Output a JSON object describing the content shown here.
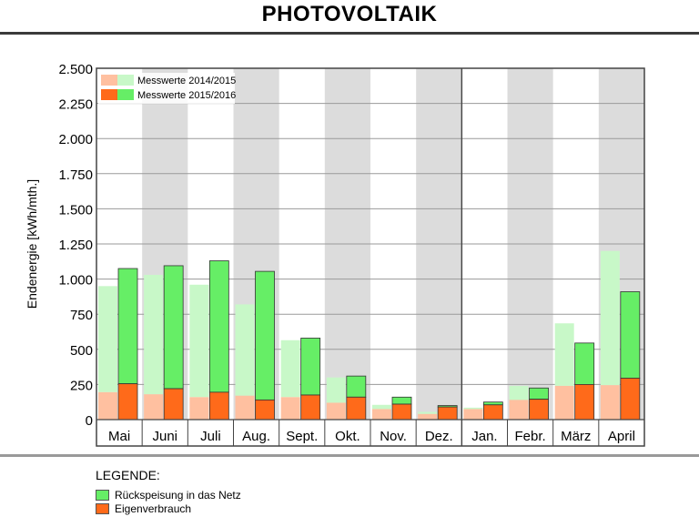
{
  "page": {
    "title": "PHOTOVOLTAIK"
  },
  "legend": {
    "title": "LEGENDE:",
    "items": [
      {
        "label": "Rückspeisung in das Netz",
        "color": "#66ee66"
      },
      {
        "label": "Eigenverbrauch",
        "color": "#ff6a1a"
      }
    ]
  },
  "chart_data": {
    "type": "bar",
    "subtype": "stacked-grouped",
    "ylabel": "Endenergie [kWh/mth.]",
    "xlabel": "",
    "ylim": [
      0,
      2500
    ],
    "yticks": [
      0,
      250,
      500,
      750,
      1000,
      1250,
      1500,
      1750,
      2000,
      2250,
      2500
    ],
    "ytick_labels": [
      "0",
      "250",
      "500",
      "750",
      "1.000",
      "1.250",
      "1.500",
      "1.750",
      "2.000",
      "2.250",
      "2.500"
    ],
    "grid": true,
    "legend_placement": "top-left",
    "categories": [
      "Mai",
      "Juni",
      "Juli",
      "Aug.",
      "Sept.",
      "Okt.",
      "Nov.",
      "Dez.",
      "Jan.",
      "Febr.",
      "März",
      "April"
    ],
    "shaded_categories": [
      1,
      3,
      5,
      7,
      9,
      11
    ],
    "year_separator_after": "Dez.",
    "series_groups": [
      {
        "name": "Messwerte 2014/2015",
        "colors": {
          "Eigenverbrauch": "#ffc0a0",
          "Rückspeisung in das Netz": "#c8f8c8"
        },
        "total": [
          950,
          1030,
          960,
          820,
          565,
          300,
          105,
          55,
          85,
          240,
          685,
          1200
        ],
        "eigenverbrauch": [
          195,
          180,
          160,
          170,
          160,
          120,
          75,
          40,
          75,
          140,
          240,
          245
        ]
      },
      {
        "name": "Messwerte 2015/2016",
        "colors": {
          "Eigenverbrauch": "#ff6a1a",
          "Rückspeisung in das Netz": "#66ee66"
        },
        "total": [
          1075,
          1095,
          1130,
          1055,
          580,
          310,
          160,
          100,
          125,
          225,
          545,
          910
        ],
        "eigenverbrauch": [
          255,
          220,
          195,
          140,
          175,
          160,
          110,
          90,
          105,
          145,
          250,
          295
        ]
      }
    ]
  }
}
